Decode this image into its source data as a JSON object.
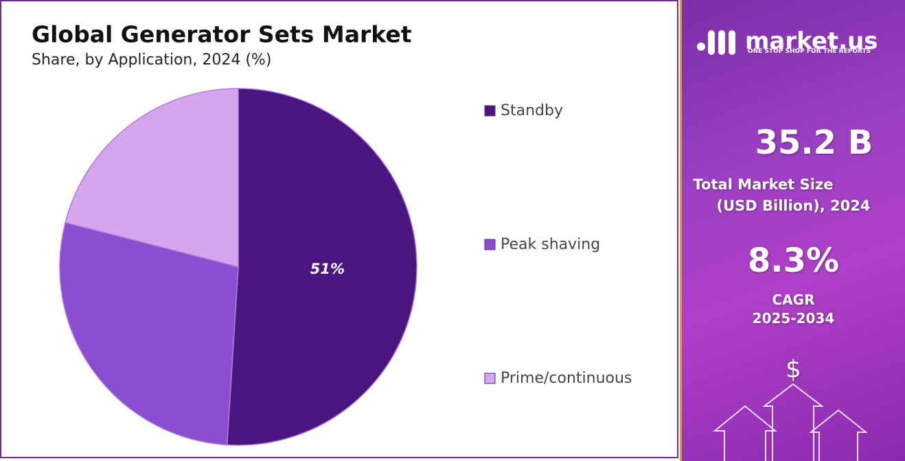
{
  "chart_data": {
    "type": "pie",
    "title": "Global Generator Sets Market",
    "subtitle": "Share, by Application, 2024 (%)",
    "categories": [
      "Standby",
      "Peak shaving",
      "Prime/continuous"
    ],
    "values": [
      51,
      28,
      21
    ],
    "value_labels": [
      "51%",
      null,
      null
    ],
    "colors": [
      "#4b1580",
      "#8a4fd0",
      "#d3a6ee"
    ],
    "legend": "right"
  },
  "sidebar": {
    "brand": "market.us",
    "tagline": "ONE STOP SHOP FOR THE REPORTS",
    "market_size": "35.2 B",
    "market_size_label_1": "Total Market Size",
    "market_size_label_2": "(USD Billion), 2024",
    "cagr": "8.3%",
    "cagr_label": "CAGR",
    "cagr_period": "2025-2034",
    "icon": "$"
  }
}
